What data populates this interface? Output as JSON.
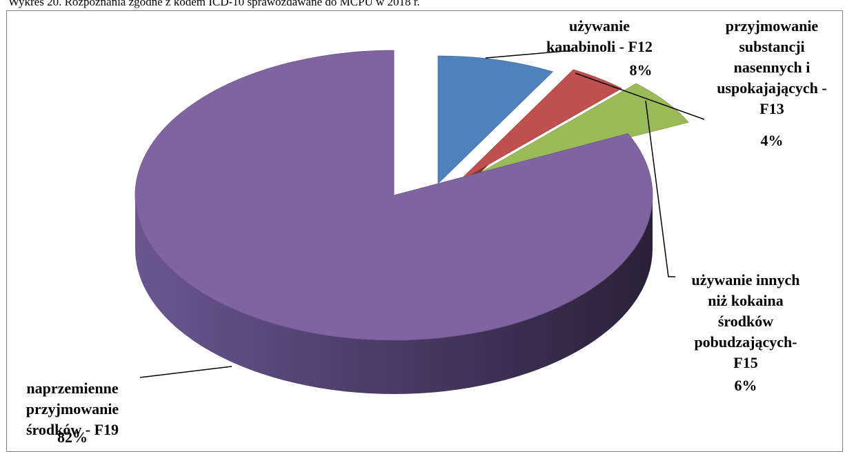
{
  "caption": "Wykres 20. Rozpoznania zgodne z kodem ICD-10 sprawozdawane do MCPU w 2018 r.",
  "chart_data": {
    "type": "pie",
    "three_d": true,
    "exploded": true,
    "title": "",
    "slices": [
      {
        "name": "używanie kanabinoli - F12",
        "value": 8,
        "percent_label": "8%",
        "label_lines": [
          "używanie",
          "kanabinoli - F12"
        ],
        "color": "#4f81bd"
      },
      {
        "name": "przyjmowanie substancji nasennych i uspokajających - F13",
        "value": 4,
        "percent_label": "4%",
        "label_lines": [
          "przyjmowanie",
          "substancji",
          "nasennych i",
          "uspokajających -",
          "F13"
        ],
        "color": "#c0504d"
      },
      {
        "name": "używanie innych niż kokaina środków pobudzających- F15",
        "value": 6,
        "percent_label": "6%",
        "label_lines": [
          "używanie innych",
          "niż kokaina",
          "środków",
          "pobudzających-",
          "F15"
        ],
        "color": "#9bbb59"
      },
      {
        "name": "naprzemienne przyjmowanie środków - F19",
        "value": 82,
        "percent_label": "82%",
        "label_lines": [
          "naprzemienne",
          "przyjmowanie",
          "środków - F19"
        ],
        "color": "#8064a2"
      }
    ]
  }
}
